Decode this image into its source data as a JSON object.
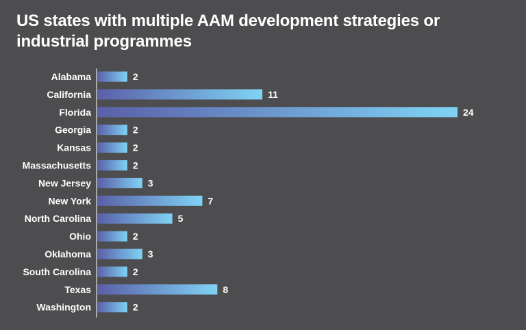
{
  "chart_data": {
    "type": "bar",
    "orientation": "horizontal",
    "title": "US states with multiple AAM development strategies or industrial programmes",
    "categories": [
      "Alabama",
      "California",
      "Florida",
      "Georgia",
      "Kansas",
      "Massachusetts",
      "New Jersey",
      "New York",
      "North Carolina",
      "Ohio",
      "Oklahoma",
      "South Carolina",
      "Texas",
      "Washington"
    ],
    "values": [
      2,
      11,
      24,
      2,
      2,
      2,
      3,
      7,
      5,
      2,
      3,
      2,
      8,
      2
    ],
    "xlabel": "",
    "ylabel": "",
    "xlim": [
      0,
      24
    ],
    "grid": false,
    "legend": "none",
    "colors": {
      "background": "#4d4d4f",
      "bar_start": "#5a5fa8",
      "bar_end": "#7fd3f5",
      "text": "#ffffff",
      "axis": "#e6e6e6"
    }
  }
}
